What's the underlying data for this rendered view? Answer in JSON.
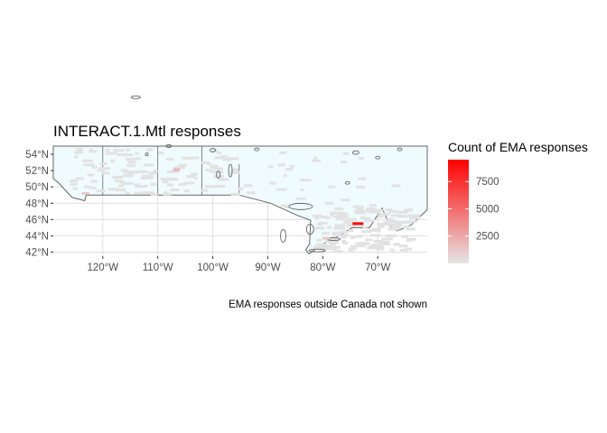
{
  "map": {
    "title": "INTERACT.1.Mtl responses",
    "caption": "EMA responses outside Canada not shown",
    "x_ticks": [
      {
        "lon": -120,
        "label": "120°W"
      },
      {
        "lon": -110,
        "label": "110°W"
      },
      {
        "lon": -100,
        "label": "100°W"
      },
      {
        "lon": -90,
        "label": "90°W"
      },
      {
        "lon": -80,
        "label": "80°W"
      },
      {
        "lon": -70,
        "label": "70°W"
      }
    ],
    "y_ticks": [
      {
        "lat": 42,
        "label": "42°N"
      },
      {
        "lat": 44,
        "label": "44°N"
      },
      {
        "lat": 46,
        "label": "46°N"
      },
      {
        "lat": 48,
        "label": "48°N"
      },
      {
        "lat": 50,
        "label": "50°N"
      },
      {
        "lat": 52,
        "label": "52°N"
      },
      {
        "lat": 54,
        "label": "54°N"
      }
    ],
    "lon_range": [
      -129,
      -61
    ],
    "lat_range": [
      41.5,
      55
    ],
    "grid": true,
    "colors": {
      "low": "#e5e5e5",
      "high": "#ff0000",
      "canada_fill": "#f0fbfd",
      "border": "#666666",
      "grid": "#dedede"
    }
  },
  "legend": {
    "title": "Count of EMA responses",
    "labels": [
      {
        "value": 7500,
        "text": "7500"
      },
      {
        "value": 5000,
        "text": "5000"
      },
      {
        "value": 2500,
        "text": "2500"
      }
    ],
    "min": 0,
    "max": 9500,
    "placement": "right"
  },
  "hotspots": [
    {
      "name": "montreal",
      "lon": -73.6,
      "lat": 45.5,
      "count": 9500
    },
    {
      "name": "saskatoon",
      "lon": -106.6,
      "lat": 52.1,
      "count": 1900
    },
    {
      "name": "vancouver",
      "lon": -123.1,
      "lat": 49.2,
      "count": 1300
    },
    {
      "name": "toronto",
      "lon": -79.4,
      "lat": 43.7,
      "count": 1100
    }
  ]
}
